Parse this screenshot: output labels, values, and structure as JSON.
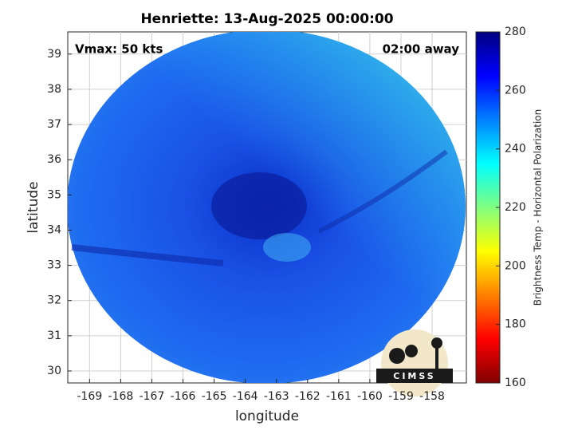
{
  "chart_data": {
    "type": "image",
    "title": "Henriette: 13-Aug-2025 00:00:00",
    "xlabel": "longitude",
    "ylabel": "latitude",
    "annotations": {
      "left": "Vmax: 50 kts",
      "right": "02:00 away"
    },
    "xlim": [
      -169.7,
      -156.9
    ],
    "xticks": [
      -169,
      -168,
      -167,
      -166,
      -165,
      -164,
      -163,
      -162,
      -161,
      -160,
      -159,
      -158
    ],
    "ylim": [
      29.66,
      39.63
    ],
    "yticks": [
      30,
      31,
      32,
      33,
      34,
      35,
      36,
      37,
      38,
      39
    ],
    "grid": true,
    "colorbar": {
      "label": "Brightness Temp - Horizontal Polarization",
      "colormap": "jet",
      "lim": [
        160,
        280
      ],
      "ticks": [
        160,
        180,
        200,
        220,
        240,
        260,
        280
      ]
    },
    "logo": "CIMSS"
  }
}
